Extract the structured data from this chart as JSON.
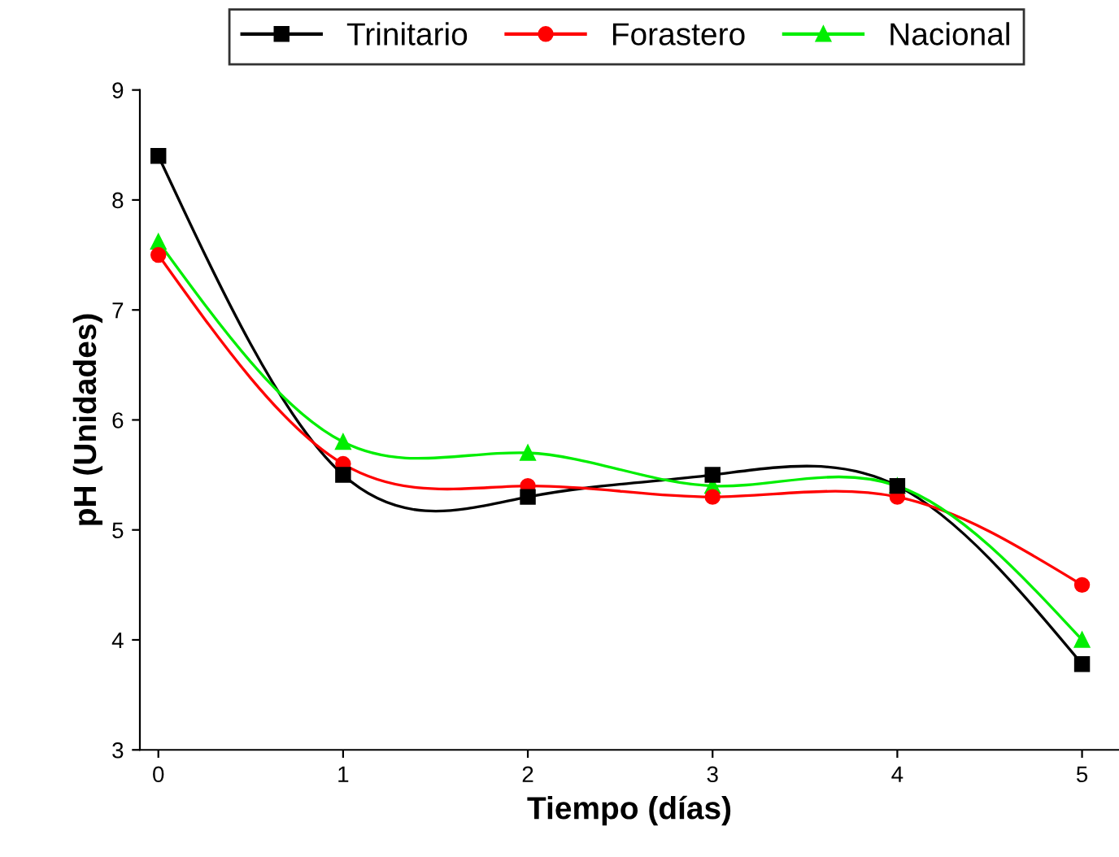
{
  "chart_data": {
    "type": "line",
    "xlabel": "Tiempo (días)",
    "ylabel": "pH (Unidades)",
    "x": [
      0,
      1,
      2,
      3,
      4,
      5
    ],
    "series": [
      {
        "name": "Trinitario",
        "color": "#000000",
        "marker": "square",
        "values": [
          8.4,
          5.5,
          5.3,
          5.5,
          5.4,
          3.78
        ]
      },
      {
        "name": "Forastero",
        "color": "#ff0000",
        "marker": "circle",
        "values": [
          7.5,
          5.6,
          5.4,
          5.3,
          5.3,
          4.5
        ]
      },
      {
        "name": "Nacional",
        "color": "#00ee00",
        "marker": "triangle",
        "values": [
          7.62,
          5.8,
          5.7,
          5.4,
          5.4,
          4.0
        ]
      }
    ],
    "xlim": [
      -0.1,
      5.2
    ],
    "ylim": [
      3,
      9
    ],
    "xticks": [
      0,
      1,
      2,
      3,
      4,
      5
    ],
    "yticks": [
      3,
      4,
      5,
      6,
      7,
      8,
      9
    ],
    "grid": false,
    "legend": "top",
    "line_style": "solid"
  }
}
